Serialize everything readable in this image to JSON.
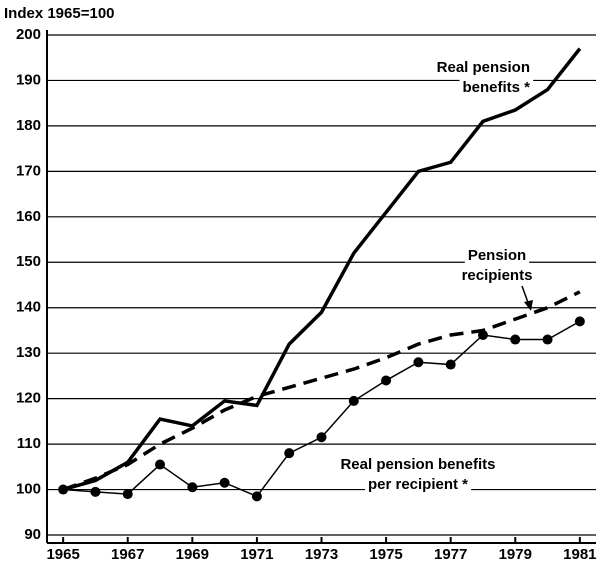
{
  "chart_data": {
    "type": "line",
    "y_axis_label": "Index 1965=100",
    "x": [
      1965,
      1966,
      1967,
      1968,
      1969,
      1970,
      1971,
      1972,
      1973,
      1974,
      1975,
      1976,
      1977,
      1978,
      1979,
      1980,
      1981
    ],
    "series": [
      {
        "name": "Real pension benefits *",
        "color": "#000000",
        "style": "solid",
        "values": [
          100,
          102,
          106,
          115.5,
          114,
          119.5,
          118.5,
          132,
          139,
          152,
          161,
          170,
          172,
          181,
          183.5,
          188,
          197
        ]
      },
      {
        "name": "Pension recipients",
        "color": "#000000",
        "style": "dashed",
        "values": [
          100,
          102.5,
          105.5,
          110,
          113.5,
          117.5,
          120.5,
          122.5,
          124.5,
          126.5,
          129,
          132,
          134,
          135,
          137.5,
          140,
          143.5
        ]
      },
      {
        "name": "Real pension benefits per recipient *",
        "color": "#000000",
        "style": "dots",
        "values": [
          100,
          99.5,
          99,
          105.5,
          100.5,
          101.5,
          98.5,
          108,
          111.5,
          119.5,
          124,
          128,
          127.5,
          134,
          133,
          133,
          137
        ]
      }
    ],
    "annotations": [
      {
        "lines": [
          "Real pension",
          "benefits *"
        ]
      },
      {
        "lines": [
          "Pension",
          "recipients"
        ]
      },
      {
        "lines": [
          "Real pension benefits",
          "per recipient *"
        ]
      }
    ],
    "xlim": [
      1964.5,
      1981.5
    ],
    "xticks": [
      1965,
      1967,
      1969,
      1971,
      1973,
      1975,
      1977,
      1979,
      1981
    ],
    "ylim": [
      90,
      200
    ],
    "yticks": [
      90,
      100,
      110,
      120,
      130,
      140,
      150,
      160,
      170,
      180,
      190,
      200
    ],
    "grid": true
  }
}
